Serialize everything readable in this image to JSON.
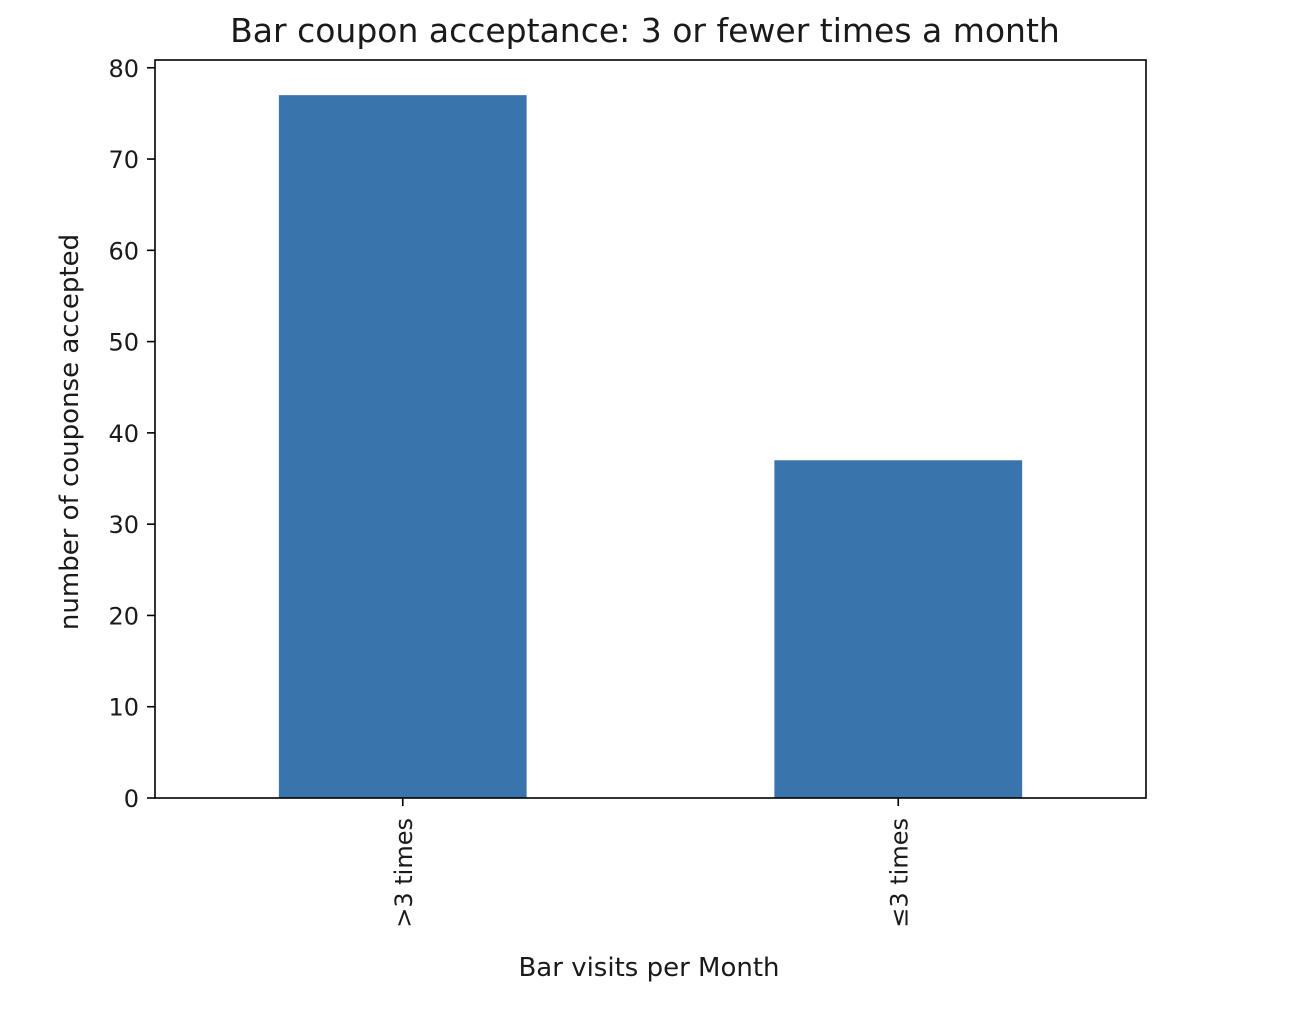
{
  "chart_data": {
    "type": "bar",
    "title": "Bar coupon acceptance: 3 or fewer times a month",
    "xlabel": "Bar visits per Month",
    "ylabel": "number of couponse accepted",
    "categories": [
      ">3 times",
      "≤3 times"
    ],
    "values": [
      77,
      37
    ],
    "ylim": [
      0,
      80.85
    ],
    "yticks": [
      0,
      10,
      20,
      30,
      40,
      50,
      60,
      70,
      80
    ],
    "grid": false,
    "legend": "none",
    "x_tick_rotation": "vertical",
    "bar_color": "#3a74ad"
  }
}
